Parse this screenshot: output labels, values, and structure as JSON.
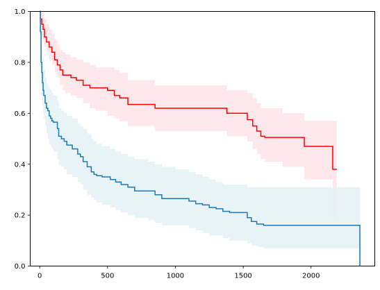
{
  "chart_data": {
    "type": "line",
    "title": "",
    "xlabel": "",
    "ylabel": "",
    "xlim": [
      -70,
      2470
    ],
    "ylim": [
      0,
      1
    ],
    "xticks": [
      0,
      500,
      1000,
      1500,
      2000
    ],
    "yticks": [
      0.0,
      0.2,
      0.4,
      0.6,
      0.8,
      1.0
    ],
    "xtick_labels": [
      "0",
      "500",
      "1000",
      "1500",
      "2000"
    ],
    "ytick_labels": [
      "0.0",
      "0.2",
      "0.4",
      "0.6",
      "0.8",
      "1.0"
    ],
    "grid": false,
    "series": [
      {
        "color": "#ff0000",
        "band_color": "#ffe4e8",
        "x": [
          0,
          5,
          15,
          25,
          35,
          50,
          70,
          90,
          110,
          130,
          150,
          170,
          190,
          230,
          270,
          320,
          370,
          410,
          500,
          550,
          590,
          650,
          850,
          1380,
          1530,
          1570,
          1600,
          1630,
          1660,
          1790,
          1950,
          2160,
          2190
        ],
        "y": [
          1.0,
          0.97,
          0.95,
          0.93,
          0.9,
          0.88,
          0.86,
          0.84,
          0.81,
          0.79,
          0.77,
          0.75,
          0.75,
          0.74,
          0.73,
          0.71,
          0.7,
          0.7,
          0.69,
          0.67,
          0.66,
          0.635,
          0.62,
          0.6,
          0.575,
          0.55,
          0.53,
          0.51,
          0.505,
          0.505,
          0.47,
          0.38,
          0.38
        ],
        "lower": [
          1.0,
          0.93,
          0.9,
          0.88,
          0.86,
          0.84,
          0.81,
          0.79,
          0.76,
          0.74,
          0.71,
          0.69,
          0.68,
          0.67,
          0.66,
          0.64,
          0.62,
          0.61,
          0.59,
          0.58,
          0.57,
          0.55,
          0.53,
          0.51,
          0.49,
          0.46,
          0.44,
          0.42,
          0.41,
          0.39,
          0.34,
          0.19,
          0.19
        ],
        "upper": [
          1.0,
          1.0,
          1.0,
          0.99,
          0.97,
          0.95,
          0.93,
          0.91,
          0.89,
          0.87,
          0.85,
          0.84,
          0.83,
          0.82,
          0.81,
          0.8,
          0.79,
          0.78,
          0.78,
          0.77,
          0.76,
          0.73,
          0.71,
          0.69,
          0.68,
          0.66,
          0.64,
          0.62,
          0.62,
          0.6,
          0.57,
          0.57,
          0.56
        ]
      },
      {
        "color": "#1f77b4",
        "band_color": "#e3f1f6",
        "x": [
          0,
          5,
          10,
          15,
          20,
          25,
          30,
          40,
          50,
          60,
          70,
          80,
          90,
          100,
          130,
          140,
          160,
          180,
          200,
          240,
          280,
          300,
          320,
          350,
          380,
          400,
          420,
          460,
          520,
          560,
          600,
          650,
          700,
          800,
          850,
          900,
          1000,
          1100,
          1150,
          1200,
          1250,
          1300,
          1350,
          1400,
          1500,
          1530,
          1560,
          1600,
          1650,
          2350,
          2360
        ],
        "y": [
          1.0,
          0.92,
          0.8,
          0.76,
          0.72,
          0.69,
          0.67,
          0.64,
          0.62,
          0.61,
          0.59,
          0.58,
          0.57,
          0.565,
          0.54,
          0.51,
          0.5,
          0.49,
          0.475,
          0.46,
          0.44,
          0.43,
          0.41,
          0.39,
          0.37,
          0.36,
          0.355,
          0.35,
          0.34,
          0.33,
          0.32,
          0.31,
          0.295,
          0.295,
          0.28,
          0.265,
          0.265,
          0.255,
          0.245,
          0.24,
          0.23,
          0.225,
          0.215,
          0.21,
          0.21,
          0.19,
          0.175,
          0.165,
          0.16,
          0.16,
          0.0
        ],
        "lower": [
          1.0,
          0.84,
          0.71,
          0.67,
          0.63,
          0.6,
          0.58,
          0.55,
          0.52,
          0.5,
          0.48,
          0.47,
          0.46,
          0.45,
          0.42,
          0.4,
          0.39,
          0.38,
          0.36,
          0.35,
          0.33,
          0.32,
          0.3,
          0.28,
          0.27,
          0.26,
          0.25,
          0.24,
          0.23,
          0.22,
          0.21,
          0.2,
          0.19,
          0.18,
          0.17,
          0.16,
          0.16,
          0.15,
          0.14,
          0.13,
          0.12,
          0.12,
          0.11,
          0.1,
          0.1,
          0.09,
          0.08,
          0.075,
          0.07,
          0.07,
          0.07
        ],
        "upper": [
          1.0,
          0.99,
          0.89,
          0.85,
          0.82,
          0.79,
          0.77,
          0.74,
          0.72,
          0.71,
          0.7,
          0.69,
          0.68,
          0.67,
          0.65,
          0.62,
          0.61,
          0.6,
          0.59,
          0.58,
          0.56,
          0.55,
          0.54,
          0.52,
          0.5,
          0.49,
          0.48,
          0.47,
          0.46,
          0.45,
          0.44,
          0.43,
          0.42,
          0.41,
          0.4,
          0.39,
          0.38,
          0.37,
          0.36,
          0.35,
          0.34,
          0.33,
          0.32,
          0.32,
          0.32,
          0.31,
          0.31,
          0.31,
          0.31,
          0.31,
          0.31
        ]
      }
    ]
  }
}
